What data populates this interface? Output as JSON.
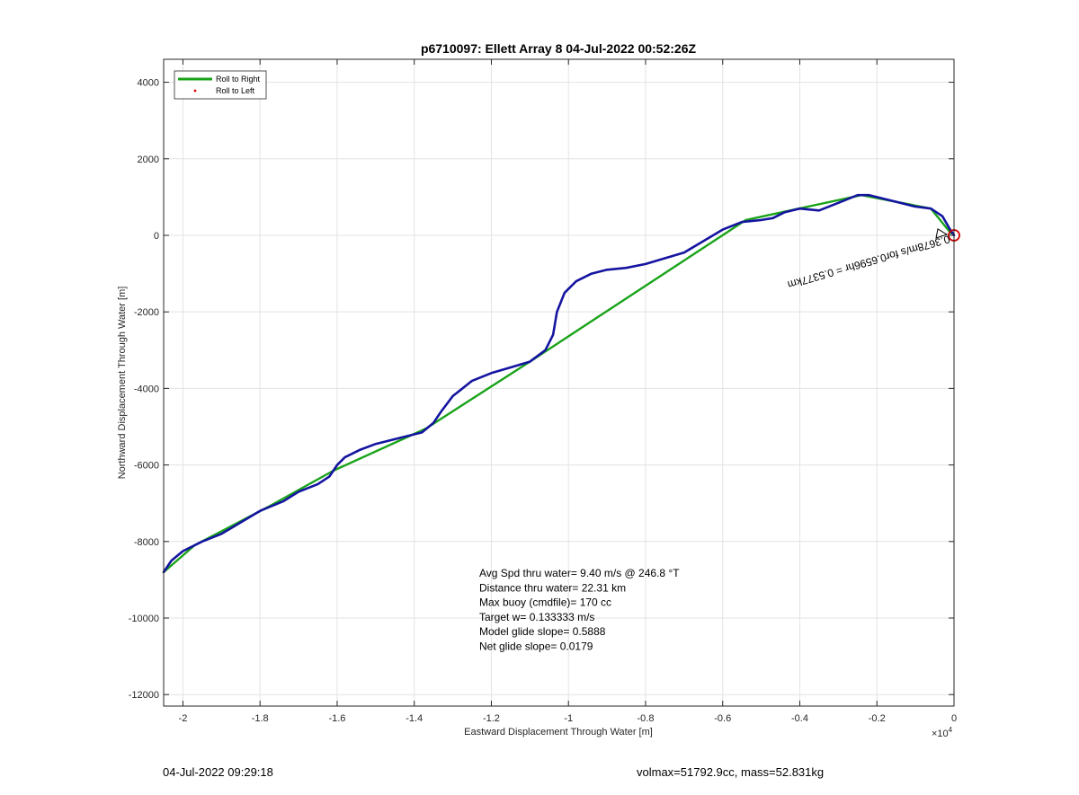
{
  "chart_data": {
    "type": "line",
    "title": "p6710097: Ellett Array 8 04-Jul-2022 00:52:26Z",
    "xlabel": "Eastward Displacement Through Water [m]",
    "ylabel": "Northward Displacement Through Water [m]",
    "x_exponent_label": "×10",
    "x_exponent_power": "4",
    "xlim": [
      -20500,
      0
    ],
    "ylim": [
      -12300,
      4600
    ],
    "grid": true,
    "legend_position": "top-left",
    "x_ticks": [
      -20000,
      -18000,
      -16000,
      -14000,
      -12000,
      -10000,
      -8000,
      -6000,
      -4000,
      -2000,
      0
    ],
    "x_tick_labels": [
      "-2",
      "-1.8",
      "-1.6",
      "-1.4",
      "-1.2",
      "-1",
      "-0.8",
      "-0.6",
      "-0.4",
      "-0.2",
      "0"
    ],
    "y_ticks": [
      -12000,
      -10000,
      -8000,
      -6000,
      -4000,
      -2000,
      0,
      2000,
      4000
    ],
    "y_tick_labels": [
      "-12000",
      "-10000",
      "-8000",
      "-6000",
      "-4000",
      "-2000",
      "0",
      "2000",
      "4000"
    ],
    "series": [
      {
        "name": "Roll to Right",
        "color": "#1aa31a",
        "points": [
          [
            -20500,
            -8800
          ],
          [
            -19700,
            -8100
          ],
          [
            -17800,
            -7100
          ],
          [
            -16100,
            -6150
          ],
          [
            -13700,
            -5050
          ],
          [
            -11000,
            -3300
          ],
          [
            -5400,
            400
          ],
          [
            -2400,
            1050
          ],
          [
            -600,
            700
          ],
          [
            -80,
            50
          ]
        ]
      },
      {
        "name": "Roll to Left",
        "color": "#e00000",
        "points": []
      },
      {
        "name": "",
        "color": "#1414a0",
        "points": [
          [
            -20500,
            -8800
          ],
          [
            -20300,
            -8500
          ],
          [
            -20000,
            -8250
          ],
          [
            -19500,
            -8000
          ],
          [
            -19000,
            -7800
          ],
          [
            -18500,
            -7500
          ],
          [
            -18000,
            -7200
          ],
          [
            -17400,
            -6950
          ],
          [
            -17000,
            -6700
          ],
          [
            -16500,
            -6500
          ],
          [
            -16200,
            -6300
          ],
          [
            -16000,
            -6000
          ],
          [
            -15800,
            -5800
          ],
          [
            -15400,
            -5600
          ],
          [
            -15000,
            -5450
          ],
          [
            -14400,
            -5300
          ],
          [
            -13800,
            -5150
          ],
          [
            -13500,
            -4900
          ],
          [
            -13300,
            -4600
          ],
          [
            -13000,
            -4200
          ],
          [
            -12500,
            -3800
          ],
          [
            -12000,
            -3600
          ],
          [
            -11500,
            -3450
          ],
          [
            -11000,
            -3300
          ],
          [
            -10600,
            -3000
          ],
          [
            -10400,
            -2600
          ],
          [
            -10300,
            -2000
          ],
          [
            -10100,
            -1500
          ],
          [
            -9800,
            -1200
          ],
          [
            -9400,
            -1000
          ],
          [
            -9000,
            -900
          ],
          [
            -8500,
            -850
          ],
          [
            -8000,
            -750
          ],
          [
            -7500,
            -600
          ],
          [
            -7000,
            -450
          ],
          [
            -6500,
            -150
          ],
          [
            -6000,
            150
          ],
          [
            -5500,
            350
          ],
          [
            -5000,
            400
          ],
          [
            -4700,
            450
          ],
          [
            -4400,
            600
          ],
          [
            -4000,
            700
          ],
          [
            -3500,
            650
          ],
          [
            -3000,
            850
          ],
          [
            -2500,
            1050
          ],
          [
            -2200,
            1050
          ],
          [
            -1800,
            950
          ],
          [
            -1400,
            850
          ],
          [
            -1000,
            750
          ],
          [
            -600,
            700
          ],
          [
            -300,
            500
          ],
          [
            -100,
            150
          ],
          [
            0,
            0
          ]
        ]
      }
    ],
    "end_marker": {
      "x": 0,
      "y": 0,
      "color": "#cc0000"
    },
    "rotated_annotation": "0.3678m/s for0.6596hr = 0.5377km",
    "stats": [
      "Avg Spd thru water=  9.40 m/s @ 246.8 °T",
      "Distance thru water= 22.31 km",
      "Max buoy (cmdfile)= 170 cc",
      "Target w= 0.133333 m/s",
      "Model glide slope= 0.5888",
      "Net glide slope= 0.0179"
    ]
  },
  "footer": {
    "left": "04-Jul-2022 09:29:18",
    "right": "volmax=51792.9cc, mass=52.831kg"
  }
}
